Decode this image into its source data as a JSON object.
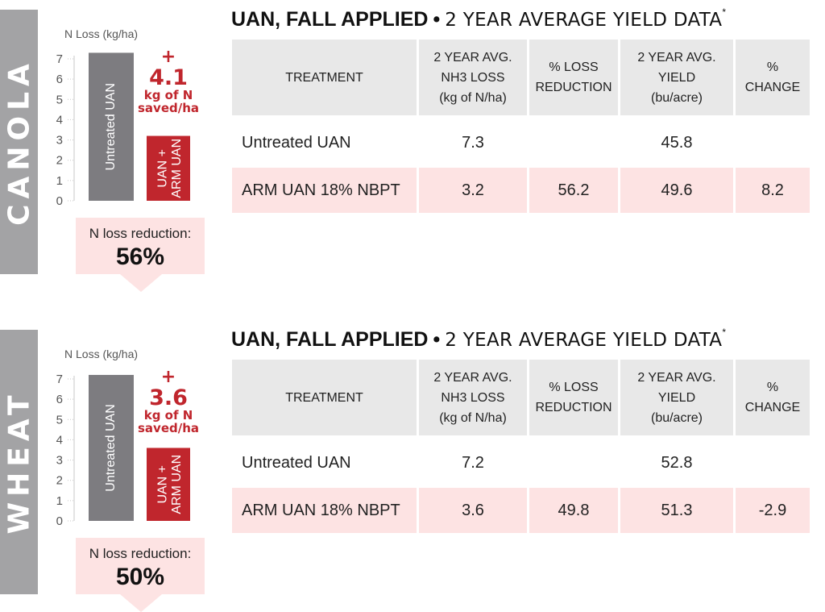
{
  "chart_data": [
    {
      "type": "bar",
      "title": "N Loss (kg/ha)",
      "categories": [
        "Untreated UAN",
        "UAN + ARM UAN"
      ],
      "values": [
        7.3,
        3.2
      ],
      "yticks": [
        0,
        1,
        2,
        3,
        4,
        5,
        6,
        7
      ],
      "ylim": [
        0,
        7.5
      ],
      "colors": [
        "#7d7c80",
        "#c0262d"
      ],
      "annotation": {
        "plus": "+",
        "value": "4.1",
        "line1": "kg of N",
        "line2": "saved/ha"
      }
    },
    {
      "type": "bar",
      "title": "N Loss (kg/ha)",
      "categories": [
        "Untreated UAN",
        "UAN + ARM UAN"
      ],
      "values": [
        7.2,
        3.6
      ],
      "yticks": [
        0,
        1,
        2,
        3,
        4,
        5,
        6,
        7
      ],
      "ylim": [
        0,
        7.5
      ],
      "colors": [
        "#7d7c80",
        "#c0262d"
      ],
      "annotation": {
        "plus": "+",
        "value": "3.6",
        "line1": "kg of N",
        "line2": "saved/ha"
      }
    }
  ],
  "sections": [
    {
      "crop": "CANOLA",
      "reduction_label": "N loss reduction:",
      "reduction_value": "56%",
      "table_title": {
        "main": "UAN, FALL APPLIED",
        "sep": "•",
        "sub": "2 YEAR AVERAGE YIELD DATA",
        "sup": "*"
      },
      "headers": [
        [
          "TREATMENT"
        ],
        [
          "2 YEAR AVG.",
          "NH3 LOSS",
          "(kg of N/ha)"
        ],
        [
          "% LOSS",
          "REDUCTION"
        ],
        [
          "2 YEAR AVG.",
          "YIELD",
          "(bu/acre)"
        ],
        [
          "%",
          "CHANGE"
        ]
      ],
      "rows": [
        [
          "Untreated UAN",
          "7.3",
          "",
          "45.8",
          ""
        ],
        [
          "ARM UAN 18% NBPT",
          "3.2",
          "56.2",
          "49.6",
          "8.2"
        ]
      ]
    },
    {
      "crop": "WHEAT",
      "reduction_label": "N loss reduction:",
      "reduction_value": "50%",
      "table_title": {
        "main": "UAN, FALL APPLIED",
        "sep": "•",
        "sub": "2 YEAR AVERAGE YIELD DATA",
        "sup": "*"
      },
      "headers": [
        [
          "TREATMENT"
        ],
        [
          "2 YEAR AVG.",
          "NH3 LOSS",
          "(kg of N/ha)"
        ],
        [
          "% LOSS",
          "REDUCTION"
        ],
        [
          "2 YEAR AVG.",
          "YIELD",
          "(bu/acre)"
        ],
        [
          "%",
          "CHANGE"
        ]
      ],
      "rows": [
        [
          "Untreated UAN",
          "7.2",
          "",
          "52.8",
          ""
        ],
        [
          "ARM UAN 18% NBPT",
          "3.6",
          "49.8",
          "51.3",
          "-2.9"
        ]
      ]
    }
  ]
}
